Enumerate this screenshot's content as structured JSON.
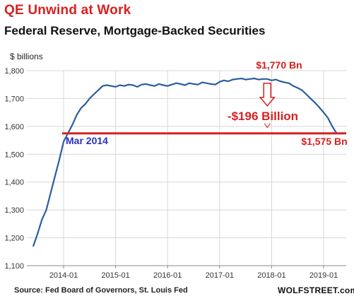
{
  "header": {
    "title": "QE Unwind at Work",
    "subtitle": "Federal Reserve, Mortgage-Backed Securities"
  },
  "footer": {
    "source": "Source: Fed Board of Governors, St. Louis Fed",
    "brand": "WOLFSTREET.com"
  },
  "colors": {
    "series": "#2c5d9e",
    "accent_red": "#d9201f",
    "accent_blue": "#2b2fbf",
    "grid": "#d7d7d7"
  },
  "chart_data": {
    "type": "line",
    "title": "QE Unwind at Work",
    "subtitle": "Federal Reserve, Mortgage-Backed Securities",
    "ylabel": "$ billions",
    "xlabel": "",
    "ylim": [
      1100,
      1800
    ],
    "yticks": [
      "1,100",
      "1,200",
      "1,300",
      "1,400",
      "1,500",
      "1,600",
      "1,700",
      "1,800"
    ],
    "ytick_values": [
      1100,
      1200,
      1300,
      1400,
      1500,
      1600,
      1700,
      1800
    ],
    "xticks": [
      "2014-01",
      "2015-01",
      "2016-01",
      "2017-01",
      "2018-01",
      "2019-01"
    ],
    "grid": true,
    "series": [
      {
        "name": "",
        "x": [
          "2013-06",
          "2013-07",
          "2013-08",
          "2013-09",
          "2013-10",
          "2013-11",
          "2013-12",
          "2014-01",
          "2014-02",
          "2014-03",
          "2014-04",
          "2014-05",
          "2014-06",
          "2014-07",
          "2014-08",
          "2014-09",
          "2014-10",
          "2014-11",
          "2014-12",
          "2015-01",
          "2015-02",
          "2015-03",
          "2015-04",
          "2015-05",
          "2015-06",
          "2015-07",
          "2015-08",
          "2015-09",
          "2015-10",
          "2015-11",
          "2015-12",
          "2016-01",
          "2016-02",
          "2016-03",
          "2016-04",
          "2016-05",
          "2016-06",
          "2016-07",
          "2016-08",
          "2016-09",
          "2016-10",
          "2016-11",
          "2016-12",
          "2017-01",
          "2017-02",
          "2017-03",
          "2017-04",
          "2017-05",
          "2017-06",
          "2017-07",
          "2017-08",
          "2017-09",
          "2017-10",
          "2017-11",
          "2017-12",
          "2018-01",
          "2018-02",
          "2018-03",
          "2018-04",
          "2018-05",
          "2018-06",
          "2018-07",
          "2018-08",
          "2018-09",
          "2018-10",
          "2018-11",
          "2018-12",
          "2019-01",
          "2019-02",
          "2019-03",
          "2019-04"
        ],
        "values": [
          1170,
          1215,
          1265,
          1300,
          1360,
          1420,
          1480,
          1545,
          1575,
          1605,
          1640,
          1665,
          1680,
          1700,
          1715,
          1730,
          1745,
          1748,
          1745,
          1742,
          1748,
          1745,
          1750,
          1748,
          1742,
          1750,
          1752,
          1748,
          1745,
          1752,
          1748,
          1745,
          1750,
          1755,
          1752,
          1748,
          1755,
          1752,
          1750,
          1758,
          1755,
          1752,
          1750,
          1760,
          1765,
          1762,
          1768,
          1770,
          1772,
          1768,
          1770,
          1772,
          1768,
          1770,
          1770,
          1765,
          1768,
          1762,
          1758,
          1755,
          1745,
          1738,
          1730,
          1715,
          1700,
          1685,
          1668,
          1650,
          1630,
          1600,
          1575
        ]
      }
    ],
    "annotations": [
      {
        "text": "$1,770 Bn",
        "x": "2017-12",
        "y": 1770
      },
      {
        "text": "-$196 Billion"
      },
      {
        "text": "$1,575 Bn",
        "x": "2019-04",
        "y": 1575
      },
      {
        "text": "Mar 2014",
        "x": "2014-03",
        "y": 1575
      }
    ],
    "reference_line": {
      "y": 1575
    }
  }
}
